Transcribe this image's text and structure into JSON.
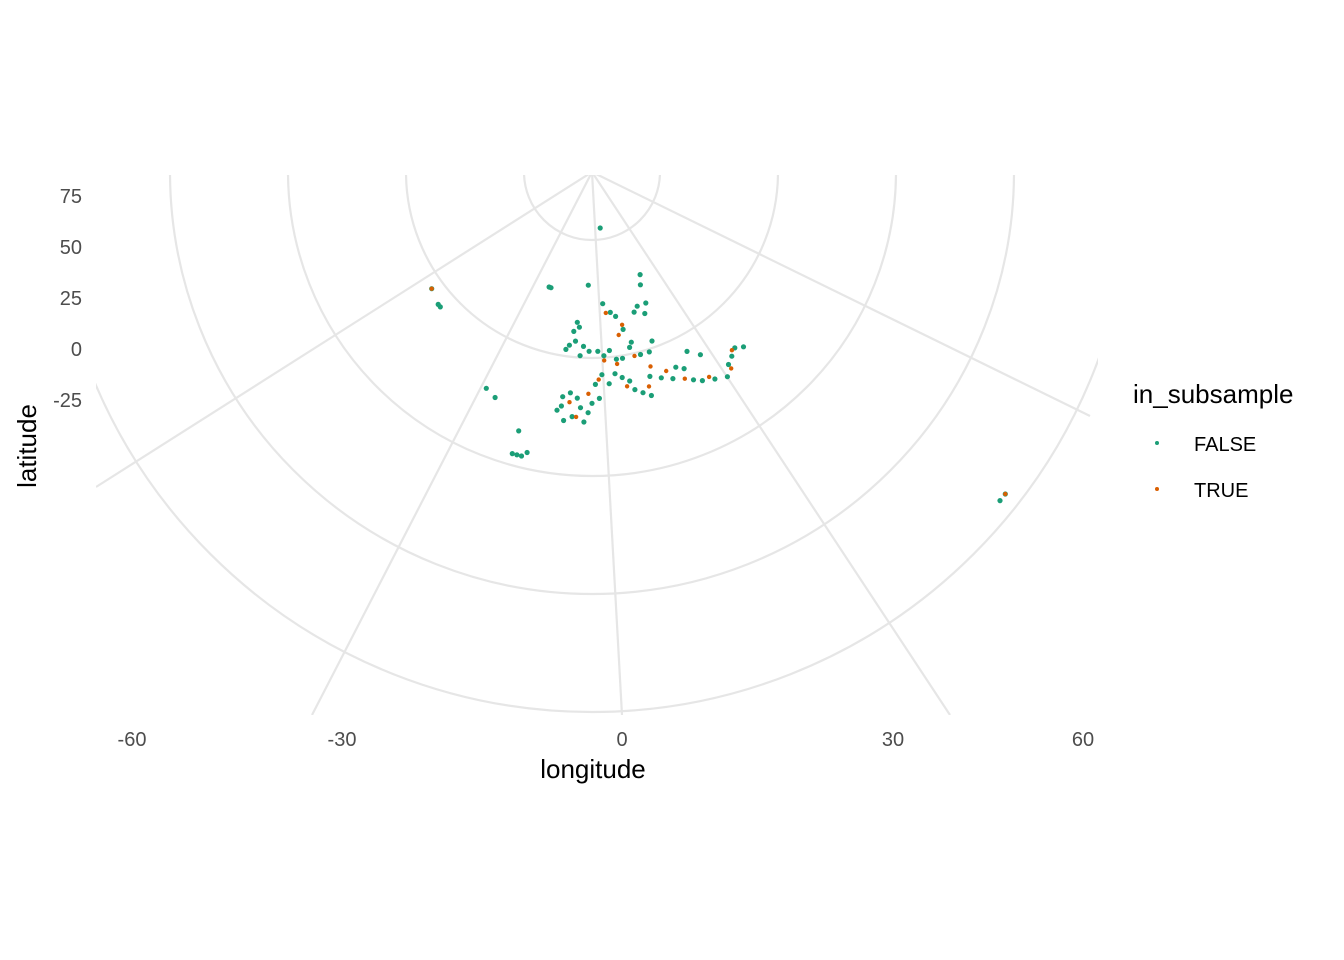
{
  "chart_data": {
    "type": "scatter",
    "projection": "polar (azimuthal map projection)",
    "xlabel": "longitude",
    "ylabel": "latitude",
    "x_ticks": [
      -60,
      -30,
      0,
      30,
      60
    ],
    "y_ticks": [
      75,
      50,
      25,
      0,
      -25
    ],
    "grid": true,
    "legend": {
      "title": "in_subsample",
      "placement": "right",
      "entries": [
        {
          "label": "FALSE",
          "color": "#1b9e77"
        },
        {
          "label": "TRUE",
          "color": "#d95f02"
        }
      ]
    },
    "series": [
      {
        "name": "FALSE",
        "color": "#1b9e77",
        "points": [
          {
            "lon": -2,
            "lat": 66
          },
          {
            "lon": -6,
            "lat": 58
          },
          {
            "lon": -5,
            "lat": 57
          },
          {
            "lon": -7,
            "lat": 56
          },
          {
            "lon": 5,
            "lat": 62
          },
          {
            "lon": 8,
            "lat": 60
          },
          {
            "lon": 10,
            "lat": 59
          },
          {
            "lon": 12,
            "lat": 56
          },
          {
            "lon": 14,
            "lat": 53
          },
          {
            "lon": 18,
            "lat": 59
          },
          {
            "lon": 20,
            "lat": 60
          },
          {
            "lon": 22,
            "lat": 58
          },
          {
            "lon": 24,
            "lat": 60
          },
          {
            "lon": 25,
            "lat": 64
          },
          {
            "lon": 27,
            "lat": 66
          },
          {
            "lon": 2,
            "lat": 52
          },
          {
            "lon": 4,
            "lat": 51
          },
          {
            "lon": 6,
            "lat": 52
          },
          {
            "lon": 8,
            "lat": 50
          },
          {
            "lon": 10,
            "lat": 50
          },
          {
            "lon": 13,
            "lat": 52
          },
          {
            "lon": 16,
            "lat": 50
          },
          {
            "lon": 19,
            "lat": 50
          },
          {
            "lon": 21,
            "lat": 52
          },
          {
            "lon": -1,
            "lat": 52
          },
          {
            "lon": -3,
            "lat": 53
          },
          {
            "lon": -4,
            "lat": 51
          },
          {
            "lon": -8,
            "lat": 53
          },
          {
            "lon": -9,
            "lat": 52
          },
          {
            "lon": -6,
            "lat": 54
          },
          {
            "lon": 3,
            "lat": 47
          },
          {
            "lon": 1,
            "lat": 45
          },
          {
            "lon": 5,
            "lat": 45
          },
          {
            "lon": 7,
            "lat": 47
          },
          {
            "lon": 9,
            "lat": 46
          },
          {
            "lon": 11,
            "lat": 45
          },
          {
            "lon": 12,
            "lat": 43
          },
          {
            "lon": 14,
            "lat": 42
          },
          {
            "lon": 16,
            "lat": 41
          },
          {
            "lon": 17,
            "lat": 45
          },
          {
            "lon": 20,
            "lat": 44
          },
          {
            "lon": 23,
            "lat": 43
          },
          {
            "lon": 25,
            "lat": 45
          },
          {
            "lon": 27,
            "lat": 44
          },
          {
            "lon": 28,
            "lat": 41
          },
          {
            "lon": 30,
            "lat": 40
          },
          {
            "lon": 33,
            "lat": 39
          },
          {
            "lon": 36,
            "lat": 38
          },
          {
            "lon": 38,
            "lat": 40
          },
          {
            "lon": 40,
            "lat": 41
          },
          {
            "lon": 42,
            "lat": 42
          },
          {
            "lon": 44,
            "lat": 41
          },
          {
            "lon": 30,
            "lat": 47
          },
          {
            "lon": 33,
            "lat": 45
          },
          {
            "lon": -3,
            "lat": 40
          },
          {
            "lon": -5,
            "lat": 38
          },
          {
            "lon": -8,
            "lat": 40
          },
          {
            "lon": -9,
            "lat": 39
          },
          {
            "lon": -7,
            "lat": 37
          },
          {
            "lon": -2,
            "lat": 37
          },
          {
            "lon": -1,
            "lat": 39
          },
          {
            "lon": 0,
            "lat": 41
          },
          {
            "lon": 2,
            "lat": 42
          },
          {
            "lon": -4,
            "lat": 42
          },
          {
            "lon": -6,
            "lat": 43
          },
          {
            "lon": -8,
            "lat": 42
          },
          {
            "lon": -16,
            "lat": 28
          },
          {
            "lon": -17,
            "lat": 28
          },
          {
            "lon": -15,
            "lat": 28
          },
          {
            "lon": -14,
            "lat": 29
          },
          {
            "lon": -25,
            "lat": 38
          },
          {
            "lon": -28,
            "lat": 39
          },
          {
            "lon": -17,
            "lat": 33
          },
          {
            "lon": -22,
            "lat": 64
          },
          {
            "lon": -21,
            "lat": 64
          },
          {
            "lon": -52,
            "lat": 47
          },
          {
            "lon": -53,
            "lat": 47
          },
          {
            "lon": -58,
            "lat": 48
          },
          {
            "lon": 56,
            "lat": -21
          },
          {
            "lon": 55,
            "lat": -21
          },
          {
            "lon": 9,
            "lat": 78
          }
        ]
      },
      {
        "name": "TRUE",
        "color": "#d95f02",
        "points": [
          {
            "lon": 6,
            "lat": 60
          },
          {
            "lon": 10,
            "lat": 55
          },
          {
            "lon": 12,
            "lat": 57
          },
          {
            "lon": 4,
            "lat": 50
          },
          {
            "lon": 8,
            "lat": 49
          },
          {
            "lon": 14,
            "lat": 50
          },
          {
            "lon": 2,
            "lat": 46
          },
          {
            "lon": 10,
            "lat": 44
          },
          {
            "lon": 18,
            "lat": 47
          },
          {
            "lon": 22,
            "lat": 45
          },
          {
            "lon": 26,
            "lat": 42
          },
          {
            "lon": 32,
            "lat": 40
          },
          {
            "lon": 38,
            "lat": 39
          },
          {
            "lon": 41,
            "lat": 42
          },
          {
            "lon": -6,
            "lat": 41
          },
          {
            "lon": -4,
            "lat": 38
          },
          {
            "lon": -1,
            "lat": 43
          },
          {
            "lon": 16,
            "lat": 43
          },
          {
            "lon": -58,
            "lat": 48
          },
          {
            "lon": 56,
            "lat": -21
          }
        ]
      }
    ]
  }
}
